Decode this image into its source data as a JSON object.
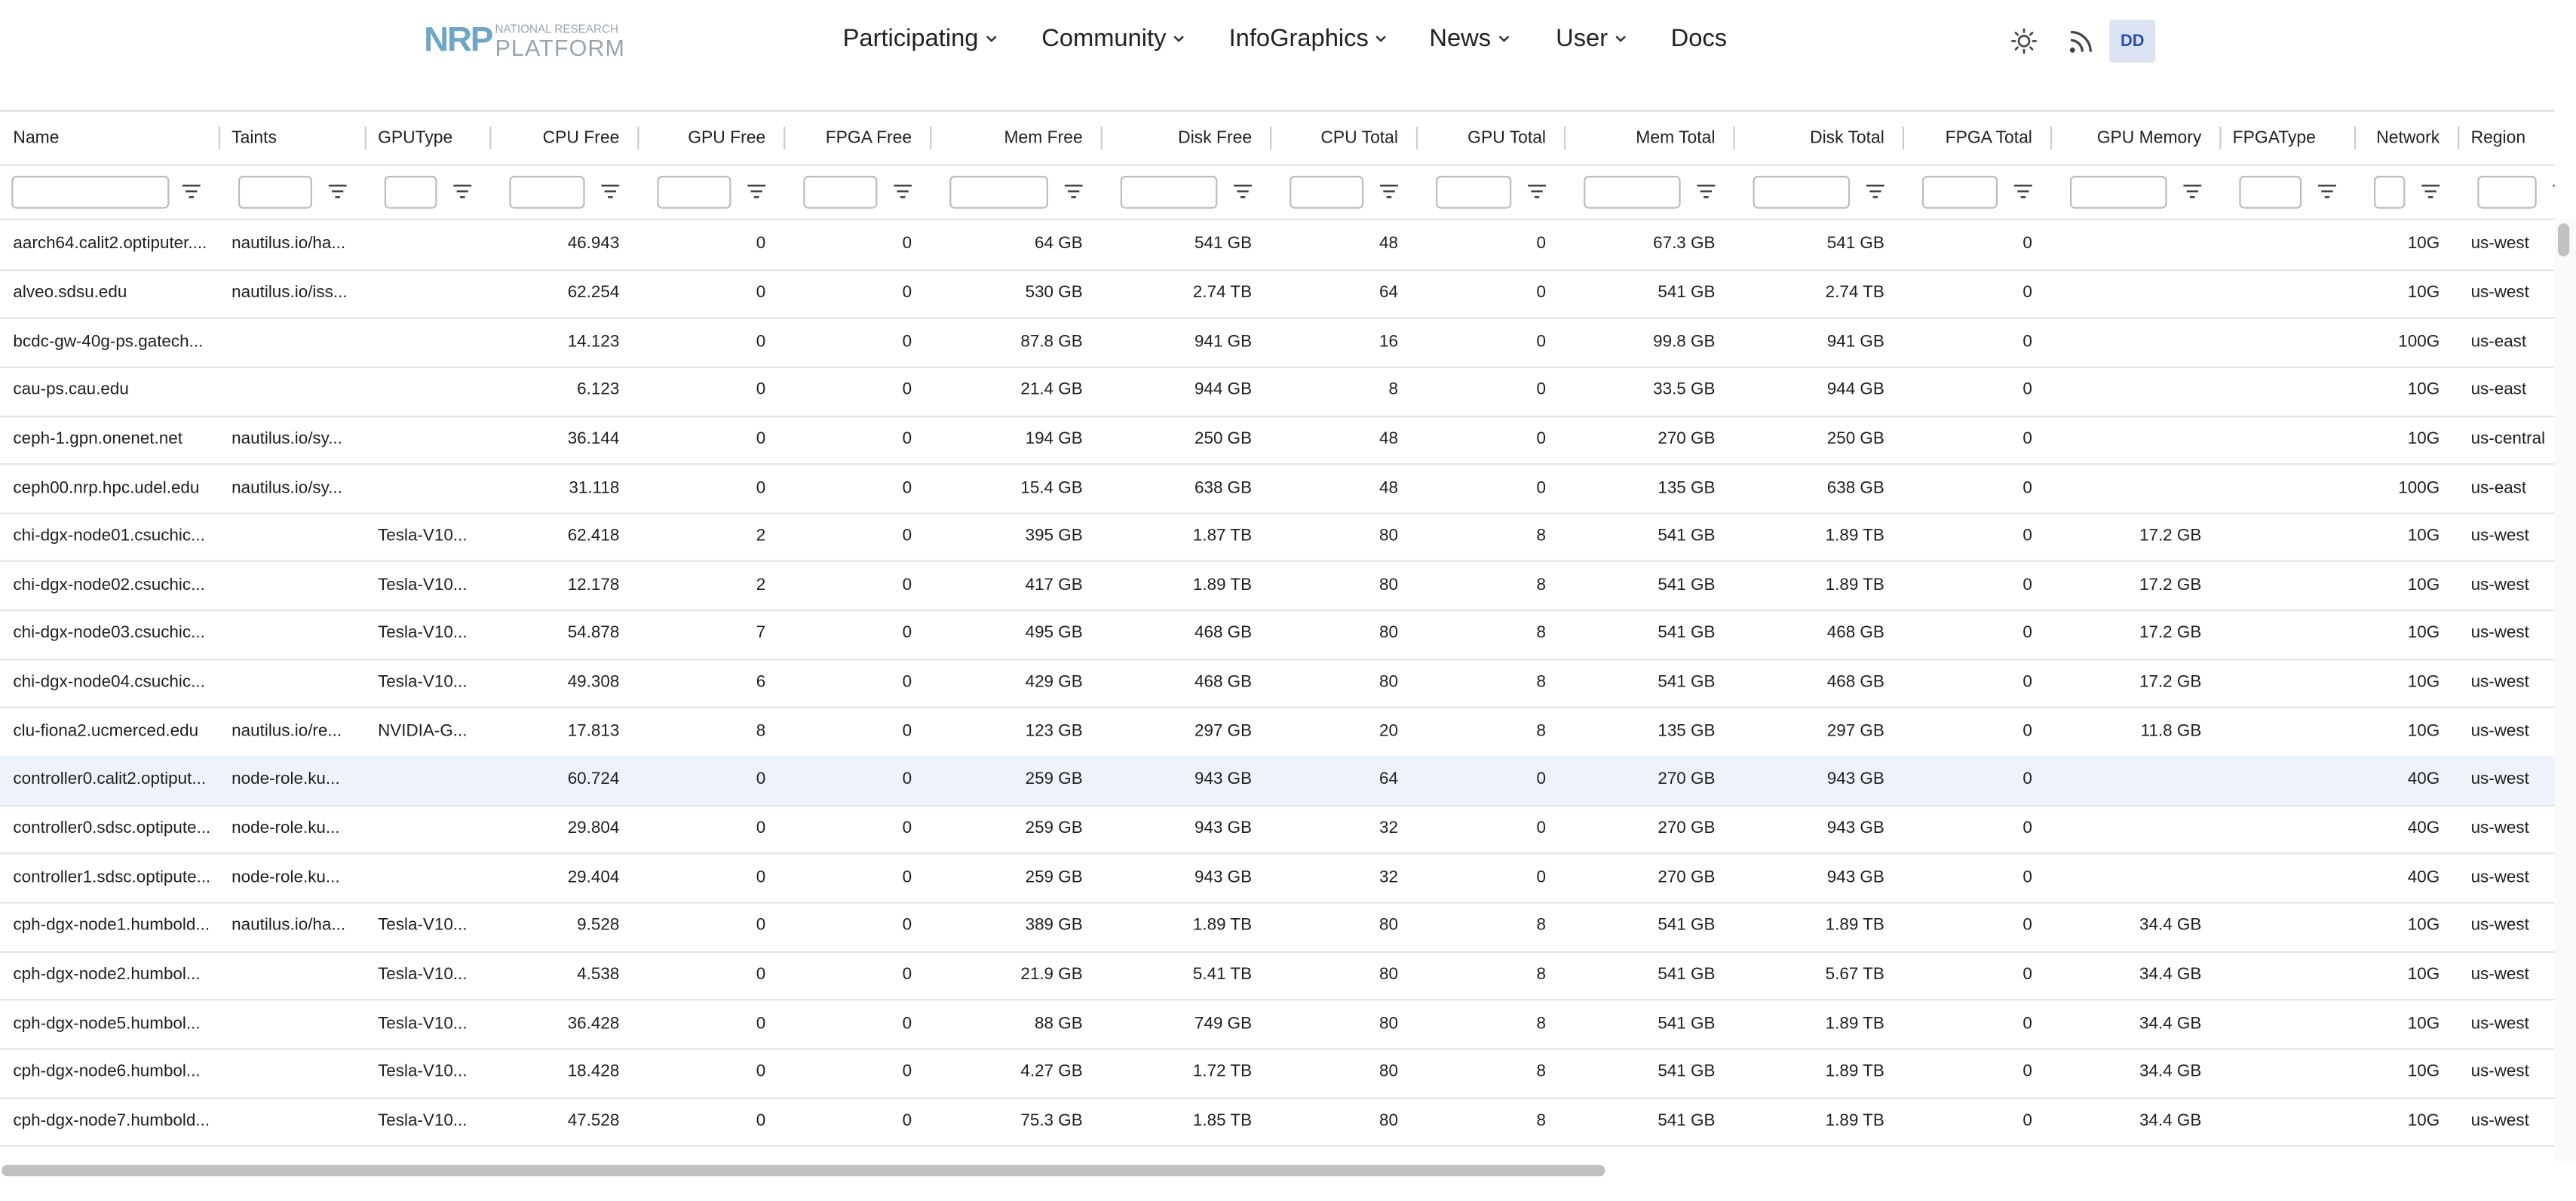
{
  "header": {
    "logo_mark": "NRP",
    "logo_top": "NATIONAL RESEARCH",
    "logo_bottom": "PLATFORM",
    "nav": [
      "Participating",
      "Community",
      "InfoGraphics",
      "News",
      "User",
      "Docs"
    ],
    "user_badge": "DD"
  },
  "table": {
    "columns": [
      "Name",
      "Taints",
      "GPUType",
      "CPU Free",
      "GPU Free",
      "FPGA Free",
      "Mem Free",
      "Disk Free",
      "CPU Total",
      "GPU Total",
      "Mem Total",
      "Disk Total",
      "FPGA Total",
      "GPU Memory",
      "FPGAType",
      "Network",
      "Region"
    ],
    "rows": [
      [
        "aarch64.calit2.optiputer....",
        "nautilus.io/ha...",
        null,
        46.943,
        0,
        0,
        "64 GB",
        "541 GB",
        48,
        0,
        "67.3 GB",
        "541 GB",
        0,
        null,
        null,
        "10G",
        "us-west"
      ],
      [
        "alveo.sdsu.edu",
        "nautilus.io/iss...",
        null,
        62.254,
        0,
        0,
        "530 GB",
        "2.74 TB",
        64,
        0,
        "541 GB",
        "2.74 TB",
        0,
        null,
        null,
        "10G",
        "us-west"
      ],
      [
        "bcdc-gw-40g-ps.gatech...",
        null,
        null,
        14.123,
        0,
        0,
        "87.8 GB",
        "941 GB",
        16,
        0,
        "99.8 GB",
        "941 GB",
        0,
        null,
        null,
        "100G",
        "us-east"
      ],
      [
        "cau-ps.cau.edu",
        null,
        null,
        6.123,
        0,
        0,
        "21.4 GB",
        "944 GB",
        8,
        0,
        "33.5 GB",
        "944 GB",
        0,
        null,
        null,
        "10G",
        "us-east"
      ],
      [
        "ceph-1.gpn.onenet.net",
        "nautilus.io/sy...",
        null,
        36.144,
        0,
        0,
        "194 GB",
        "250 GB",
        48,
        0,
        "270 GB",
        "250 GB",
        0,
        null,
        null,
        "10G",
        "us-central"
      ],
      [
        "ceph00.nrp.hpc.udel.edu",
        "nautilus.io/sy...",
        null,
        31.118,
        0,
        0,
        "15.4 GB",
        "638 GB",
        48,
        0,
        "135 GB",
        "638 GB",
        0,
        null,
        null,
        "100G",
        "us-east"
      ],
      [
        "chi-dgx-node01.csuchic...",
        null,
        "Tesla-V10...",
        62.418,
        2,
        0,
        "395 GB",
        "1.87 TB",
        80,
        8,
        "541 GB",
        "1.89 TB",
        0,
        "17.2 GB",
        null,
        "10G",
        "us-west"
      ],
      [
        "chi-dgx-node02.csuchic...",
        null,
        "Tesla-V10...",
        12.178,
        2,
        0,
        "417 GB",
        "1.89 TB",
        80,
        8,
        "541 GB",
        "1.89 TB",
        0,
        "17.2 GB",
        null,
        "10G",
        "us-west"
      ],
      [
        "chi-dgx-node03.csuchic...",
        null,
        "Tesla-V10...",
        54.878,
        7,
        0,
        "495 GB",
        "468 GB",
        80,
        8,
        "541 GB",
        "468 GB",
        0,
        "17.2 GB",
        null,
        "10G",
        "us-west"
      ],
      [
        "chi-dgx-node04.csuchic...",
        null,
        "Tesla-V10...",
        49.308,
        6,
        0,
        "429 GB",
        "468 GB",
        80,
        8,
        "541 GB",
        "468 GB",
        0,
        "17.2 GB",
        null,
        "10G",
        "us-west"
      ],
      [
        "clu-fiona2.ucmerced.edu",
        "nautilus.io/re...",
        "NVIDIA-G...",
        17.813,
        8,
        0,
        "123 GB",
        "297 GB",
        20,
        8,
        "135 GB",
        "297 GB",
        0,
        "11.8 GB",
        null,
        "10G",
        "us-west"
      ],
      [
        "controller0.calit2.optiput...",
        "node-role.ku...",
        null,
        60.724,
        0,
        0,
        "259 GB",
        "943 GB",
        64,
        0,
        "270 GB",
        "943 GB",
        0,
        null,
        null,
        "40G",
        "us-west"
      ],
      [
        "controller0.sdsc.optipute...",
        "node-role.ku...",
        null,
        29.804,
        0,
        0,
        "259 GB",
        "943 GB",
        32,
        0,
        "270 GB",
        "943 GB",
        0,
        null,
        null,
        "40G",
        "us-west"
      ],
      [
        "controller1.sdsc.optipute...",
        "node-role.ku...",
        null,
        29.404,
        0,
        0,
        "259 GB",
        "943 GB",
        32,
        0,
        "270 GB",
        "943 GB",
        0,
        null,
        null,
        "40G",
        "us-west"
      ],
      [
        "cph-dgx-node1.humbold...",
        "nautilus.io/ha...",
        "Tesla-V10...",
        9.528,
        0,
        0,
        "389 GB",
        "1.89 TB",
        80,
        8,
        "541 GB",
        "1.89 TB",
        0,
        "34.4 GB",
        null,
        "10G",
        "us-west"
      ],
      [
        "cph-dgx-node2.humbol...",
        null,
        "Tesla-V10...",
        4.538,
        0,
        0,
        "21.9 GB",
        "5.41 TB",
        80,
        8,
        "541 GB",
        "5.67 TB",
        0,
        "34.4 GB",
        null,
        "10G",
        "us-west"
      ],
      [
        "cph-dgx-node5.humbol...",
        null,
        "Tesla-V10...",
        36.428,
        0,
        0,
        "88 GB",
        "749 GB",
        80,
        8,
        "541 GB",
        "1.89 TB",
        0,
        "34.4 GB",
        null,
        "10G",
        "us-west"
      ],
      [
        "cph-dgx-node6.humbol...",
        null,
        "Tesla-V10...",
        18.428,
        0,
        0,
        "4.27 GB",
        "1.72 TB",
        80,
        8,
        "541 GB",
        "1.89 TB",
        0,
        "34.4 GB",
        null,
        "10G",
        "us-west"
      ],
      [
        "cph-dgx-node7.humbold...",
        null,
        "Tesla-V10...",
        47.528,
        0,
        0,
        "75.3 GB",
        "1.85 TB",
        80,
        8,
        "541 GB",
        "1.89 TB",
        0,
        "34.4 GB",
        null,
        "10G",
        "us-west"
      ]
    ]
  }
}
